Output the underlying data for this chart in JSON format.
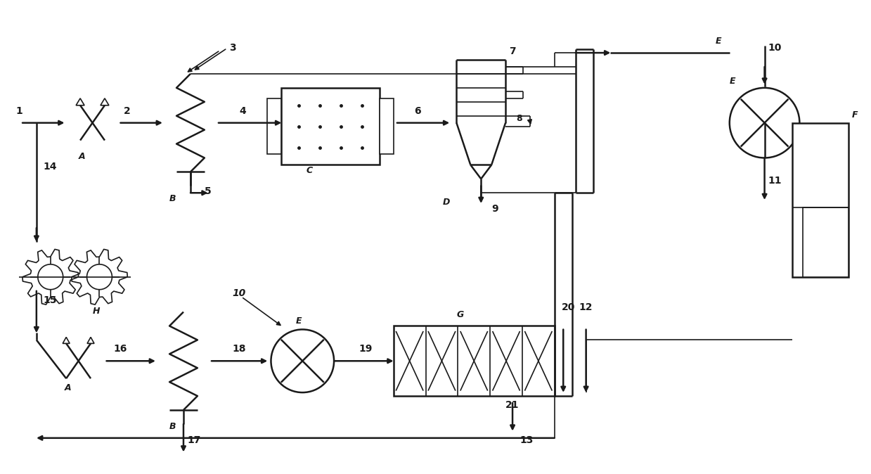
{
  "bg_color": "#ffffff",
  "line_color": "#1a1a1a",
  "lw": 1.8,
  "lw_thin": 1.2,
  "figsize": [
    12.39,
    6.74
  ],
  "dpi": 100,
  "xlim": [
    0,
    124
  ],
  "ylim": [
    0,
    67.4
  ]
}
